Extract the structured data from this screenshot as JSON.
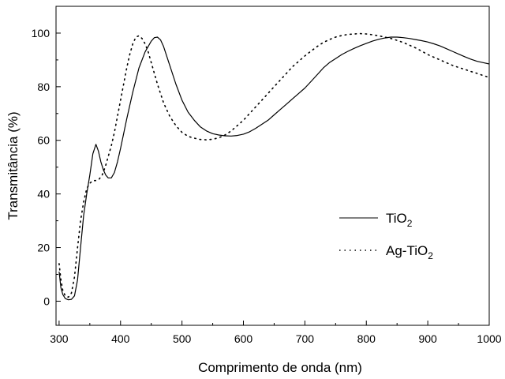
{
  "chart_data": {
    "type": "line",
    "title": "",
    "xlabel": "Comprimento de onda (nm)",
    "ylabel": "Transmitância (%)",
    "xlim": [
      295,
      1000
    ],
    "ylim": [
      -9,
      110
    ],
    "xticks": [
      300,
      400,
      500,
      600,
      700,
      800,
      900,
      1000
    ],
    "yticks": [
      0,
      20,
      40,
      60,
      80,
      100
    ],
    "grid": false,
    "legend_position": "right-middle",
    "series": [
      {
        "name": "TiO",
        "name_subscript": "2",
        "style": "solid",
        "color": "#000000",
        "points": [
          [
            300,
            11
          ],
          [
            303,
            5
          ],
          [
            306,
            2.5
          ],
          [
            310,
            1
          ],
          [
            315,
            0.5
          ],
          [
            320,
            0.7
          ],
          [
            325,
            2
          ],
          [
            330,
            8
          ],
          [
            335,
            20
          ],
          [
            340,
            32
          ],
          [
            345,
            40
          ],
          [
            350,
            47
          ],
          [
            355,
            55
          ],
          [
            360,
            58.5
          ],
          [
            364,
            56
          ],
          [
            368,
            52
          ],
          [
            372,
            49
          ],
          [
            376,
            47
          ],
          [
            380,
            46
          ],
          [
            385,
            46
          ],
          [
            390,
            48
          ],
          [
            395,
            52
          ],
          [
            400,
            57
          ],
          [
            410,
            68
          ],
          [
            420,
            78
          ],
          [
            430,
            87
          ],
          [
            440,
            93
          ],
          [
            450,
            97
          ],
          [
            455,
            98.3
          ],
          [
            460,
            98.5
          ],
          [
            465,
            97.5
          ],
          [
            470,
            95
          ],
          [
            480,
            88
          ],
          [
            490,
            81
          ],
          [
            500,
            75
          ],
          [
            510,
            70.5
          ],
          [
            520,
            67.5
          ],
          [
            530,
            65
          ],
          [
            540,
            63.5
          ],
          [
            550,
            62.5
          ],
          [
            560,
            62
          ],
          [
            570,
            61.7
          ],
          [
            580,
            61.6
          ],
          [
            590,
            61.8
          ],
          [
            600,
            62.3
          ],
          [
            610,
            63.2
          ],
          [
            620,
            64.5
          ],
          [
            630,
            66
          ],
          [
            640,
            67.5
          ],
          [
            650,
            69.5
          ],
          [
            660,
            71.5
          ],
          [
            670,
            73.5
          ],
          [
            680,
            75.5
          ],
          [
            690,
            77.5
          ],
          [
            700,
            79.5
          ],
          [
            710,
            82
          ],
          [
            720,
            84.5
          ],
          [
            730,
            87
          ],
          [
            740,
            89
          ],
          [
            750,
            90.5
          ],
          [
            760,
            92
          ],
          [
            770,
            93.2
          ],
          [
            780,
            94.3
          ],
          [
            790,
            95.3
          ],
          [
            800,
            96.2
          ],
          [
            810,
            97
          ],
          [
            820,
            97.7
          ],
          [
            830,
            98.2
          ],
          [
            840,
            98.5
          ],
          [
            850,
            98.5
          ],
          [
            860,
            98.3
          ],
          [
            870,
            98
          ],
          [
            880,
            97.6
          ],
          [
            890,
            97.2
          ],
          [
            900,
            96.7
          ],
          [
            910,
            96
          ],
          [
            920,
            95.2
          ],
          [
            930,
            94.2
          ],
          [
            940,
            93.2
          ],
          [
            950,
            92.2
          ],
          [
            960,
            91.2
          ],
          [
            970,
            90.3
          ],
          [
            980,
            89.5
          ],
          [
            990,
            89
          ],
          [
            1000,
            88.5
          ]
        ]
      },
      {
        "name": "Ag-TiO",
        "name_subscript": "2",
        "style": "dotted",
        "color": "#000000",
        "points": [
          [
            300,
            14
          ],
          [
            303,
            8
          ],
          [
            306,
            4
          ],
          [
            310,
            2
          ],
          [
            315,
            1.5
          ],
          [
            320,
            3
          ],
          [
            325,
            9
          ],
          [
            330,
            20
          ],
          [
            335,
            30
          ],
          [
            340,
            37
          ],
          [
            345,
            42
          ],
          [
            350,
            44
          ],
          [
            355,
            45
          ],
          [
            360,
            45
          ],
          [
            365,
            45.5
          ],
          [
            370,
            47
          ],
          [
            375,
            50
          ],
          [
            380,
            54
          ],
          [
            385,
            58
          ],
          [
            390,
            63
          ],
          [
            395,
            69
          ],
          [
            400,
            75
          ],
          [
            405,
            81
          ],
          [
            410,
            87
          ],
          [
            415,
            92
          ],
          [
            420,
            96
          ],
          [
            425,
            98.5
          ],
          [
            430,
            99
          ],
          [
            435,
            98
          ],
          [
            440,
            96
          ],
          [
            445,
            93
          ],
          [
            450,
            89
          ],
          [
            460,
            81
          ],
          [
            470,
            74
          ],
          [
            480,
            69
          ],
          [
            490,
            65.5
          ],
          [
            500,
            63
          ],
          [
            510,
            61.5
          ],
          [
            520,
            60.8
          ],
          [
            530,
            60.3
          ],
          [
            540,
            60.2
          ],
          [
            550,
            60.4
          ],
          [
            560,
            61
          ],
          [
            570,
            62
          ],
          [
            580,
            63.5
          ],
          [
            590,
            65.5
          ],
          [
            600,
            67.5
          ],
          [
            610,
            70
          ],
          [
            620,
            72.5
          ],
          [
            630,
            75
          ],
          [
            640,
            77.5
          ],
          [
            650,
            80
          ],
          [
            660,
            82.5
          ],
          [
            670,
            85
          ],
          [
            680,
            87.5
          ],
          [
            690,
            89.5
          ],
          [
            700,
            91.5
          ],
          [
            710,
            93.3
          ],
          [
            720,
            95
          ],
          [
            730,
            96.5
          ],
          [
            740,
            97.6
          ],
          [
            750,
            98.5
          ],
          [
            760,
            99.1
          ],
          [
            770,
            99.5
          ],
          [
            780,
            99.7
          ],
          [
            790,
            99.8
          ],
          [
            800,
            99.7
          ],
          [
            810,
            99.4
          ],
          [
            820,
            99
          ],
          [
            830,
            98.5
          ],
          [
            840,
            98
          ],
          [
            850,
            97.3
          ],
          [
            860,
            96.5
          ],
          [
            870,
            95.5
          ],
          [
            880,
            94.5
          ],
          [
            890,
            93.3
          ],
          [
            900,
            92
          ],
          [
            910,
            91
          ],
          [
            920,
            90
          ],
          [
            930,
            89
          ],
          [
            940,
            88
          ],
          [
            950,
            87.2
          ],
          [
            960,
            86.5
          ],
          [
            970,
            85.7
          ],
          [
            980,
            85
          ],
          [
            990,
            84.2
          ],
          [
            1000,
            83.5
          ]
        ]
      }
    ]
  }
}
